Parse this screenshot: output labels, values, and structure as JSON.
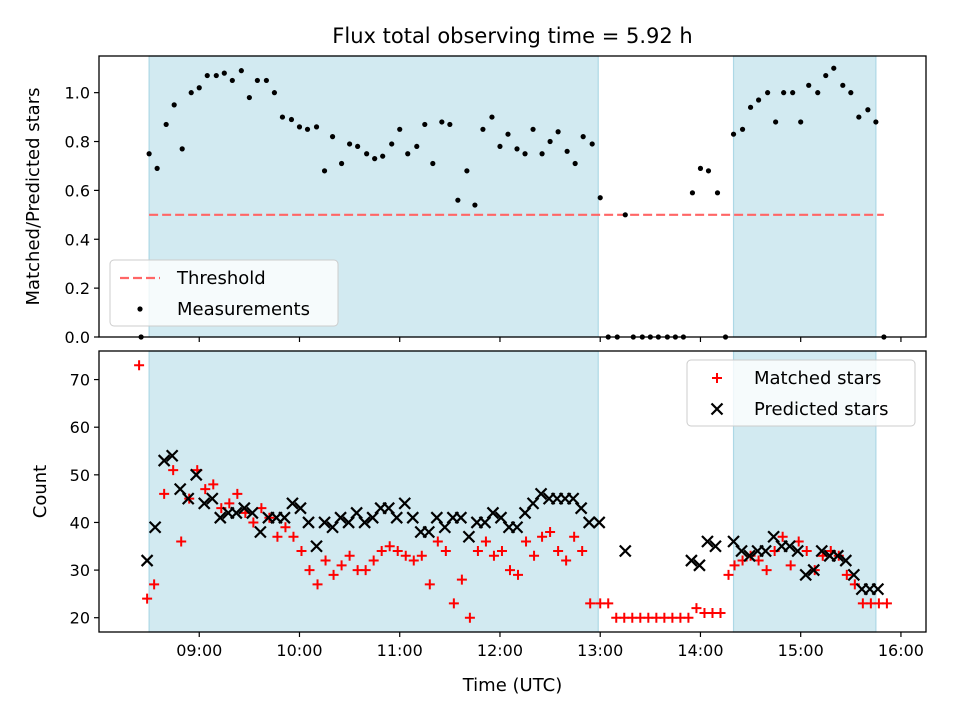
{
  "figure": {
    "title": "Flux total observing time = 5.92 h",
    "xlabel": "Time (UTC)"
  },
  "colors": {
    "shade": "#add8e6",
    "threshold": "#ff6666",
    "matched": "#ff0000",
    "predicted": "#000000",
    "measurement": "#000000"
  },
  "chart_data": [
    {
      "type": "scatter",
      "panel": "top",
      "ylabel": "Matched/Predicted stars",
      "x_unit": "hours UTC",
      "xlim": [
        8.0,
        16.25
      ],
      "ylim": [
        0,
        1.15
      ],
      "yticks": [
        0.0,
        0.2,
        0.4,
        0.6,
        0.8,
        1.0
      ],
      "ytick_labels": [
        "0.0",
        "0.2",
        "0.4",
        "0.6",
        "0.8",
        "1.0"
      ],
      "xticks": [
        9,
        10,
        11,
        12,
        13,
        14,
        15,
        16
      ],
      "xtick_labels": [
        "09:00",
        "10:00",
        "11:00",
        "12:00",
        "13:00",
        "14:00",
        "15:00",
        "16:00"
      ],
      "shaded_intervals": [
        [
          8.5,
          12.98
        ],
        [
          14.33,
          15.75
        ]
      ],
      "legend_position": "lower-left",
      "series": [
        {
          "name": "Threshold",
          "style": "dashed-line",
          "x": [
            8.5,
            15.83
          ],
          "y": [
            0.5,
            0.5
          ]
        },
        {
          "name": "Measurements",
          "style": "dot",
          "x": [
            8.42,
            8.5,
            8.58,
            8.67,
            8.75,
            8.83,
            8.92,
            9.0,
            9.08,
            9.17,
            9.25,
            9.33,
            9.42,
            9.5,
            9.58,
            9.67,
            9.75,
            9.83,
            9.92,
            10.0,
            10.08,
            10.17,
            10.25,
            10.33,
            10.42,
            10.5,
            10.58,
            10.67,
            10.75,
            10.83,
            10.92,
            11.0,
            11.08,
            11.17,
            11.25,
            11.33,
            11.42,
            11.5,
            11.58,
            11.67,
            11.75,
            11.83,
            11.92,
            12.0,
            12.08,
            12.17,
            12.25,
            12.33,
            12.42,
            12.5,
            12.58,
            12.67,
            12.75,
            12.83,
            12.92,
            13.0,
            13.08,
            13.17,
            13.25,
            13.33,
            13.42,
            13.5,
            13.58,
            13.67,
            13.75,
            13.83,
            13.92,
            14.0,
            14.08,
            14.17,
            14.25,
            14.33,
            14.42,
            14.5,
            14.58,
            14.67,
            14.75,
            14.83,
            14.92,
            15.0,
            15.08,
            15.17,
            15.25,
            15.33,
            15.42,
            15.5,
            15.58,
            15.67,
            15.75,
            15.83
          ],
          "y": [
            0.0,
            0.75,
            0.69,
            0.87,
            0.95,
            0.77,
            1.0,
            1.02,
            1.07,
            1.07,
            1.08,
            1.05,
            1.09,
            0.98,
            1.05,
            1.05,
            1.0,
            0.9,
            0.89,
            0.86,
            0.85,
            0.86,
            0.68,
            0.82,
            0.71,
            0.79,
            0.78,
            0.75,
            0.73,
            0.74,
            0.79,
            0.85,
            0.75,
            0.78,
            0.87,
            0.71,
            0.88,
            0.87,
            0.56,
            0.68,
            0.54,
            0.85,
            0.9,
            0.78,
            0.83,
            0.77,
            0.75,
            0.85,
            0.75,
            0.8,
            0.84,
            0.76,
            0.71,
            0.82,
            0.79,
            0.57,
            0.0,
            0.0,
            0.5,
            0.0,
            0.0,
            0.0,
            0.0,
            0.0,
            0.0,
            0.0,
            0.59,
            0.69,
            0.68,
            0.59,
            0.0,
            0.83,
            0.85,
            0.94,
            0.97,
            1.0,
            0.88,
            1.0,
            1.0,
            0.88,
            1.03,
            1.0,
            1.07,
            1.1,
            1.03,
            1.0,
            0.9,
            0.93,
            0.88,
            0.0
          ]
        }
      ]
    },
    {
      "type": "scatter",
      "panel": "bottom",
      "ylabel": "Count",
      "x_unit": "hours UTC",
      "xlim": [
        8.0,
        16.25
      ],
      "ylim": [
        17,
        76
      ],
      "yticks": [
        20,
        30,
        40,
        50,
        60,
        70
      ],
      "ytick_labels": [
        "20",
        "30",
        "40",
        "50",
        "60",
        "70"
      ],
      "xticks": [
        9,
        10,
        11,
        12,
        13,
        14,
        15,
        16
      ],
      "xtick_labels": [
        "09:00",
        "10:00",
        "11:00",
        "12:00",
        "13:00",
        "14:00",
        "15:00",
        "16:00"
      ],
      "shaded_intervals": [
        [
          8.5,
          12.98
        ],
        [
          14.33,
          15.75
        ]
      ],
      "legend_position": "upper-right",
      "series": [
        {
          "name": "Matched stars",
          "marker": "plus",
          "x": [
            8.4,
            8.48,
            8.55,
            8.65,
            8.74,
            8.82,
            8.9,
            8.98,
            9.06,
            9.14,
            9.22,
            9.3,
            9.38,
            9.46,
            9.54,
            9.62,
            9.7,
            9.78,
            9.86,
            9.94,
            10.02,
            10.1,
            10.18,
            10.26,
            10.34,
            10.42,
            10.5,
            10.58,
            10.66,
            10.74,
            10.82,
            10.9,
            10.98,
            11.06,
            11.14,
            11.22,
            11.3,
            11.38,
            11.46,
            11.54,
            11.62,
            11.7,
            11.78,
            11.86,
            11.94,
            12.02,
            12.1,
            12.18,
            12.26,
            12.34,
            12.42,
            12.5,
            12.58,
            12.66,
            12.74,
            12.82,
            12.9,
            13.0,
            13.08,
            13.16,
            13.24,
            13.32,
            13.4,
            13.48,
            13.56,
            13.64,
            13.72,
            13.8,
            13.88,
            13.96,
            14.04,
            14.12,
            14.2,
            14.28,
            14.34,
            14.42,
            14.5,
            14.58,
            14.66,
            14.74,
            14.82,
            14.9,
            14.98,
            15.06,
            15.14,
            15.22,
            15.3,
            15.38,
            15.46,
            15.54,
            15.62,
            15.7,
            15.78,
            15.86
          ],
          "y": [
            73,
            24,
            27,
            46,
            51,
            36,
            45,
            51,
            47,
            48,
            43,
            44,
            46,
            42,
            40,
            43,
            41,
            37,
            39,
            37,
            34,
            30,
            27,
            32,
            29,
            31,
            33,
            30,
            30,
            32,
            34,
            35,
            34,
            33,
            32,
            33,
            27,
            36,
            34,
            23,
            28,
            20,
            34,
            36,
            33,
            34,
            30,
            29,
            36,
            33,
            37,
            38,
            34,
            32,
            37,
            34,
            23,
            23,
            23,
            20,
            20,
            20,
            20,
            20,
            20,
            20,
            20,
            20,
            20,
            22,
            21,
            21,
            21,
            29,
            31,
            32,
            33,
            32,
            30,
            34,
            37,
            31,
            36,
            34,
            30,
            33,
            34,
            33,
            29,
            27,
            23,
            23,
            23,
            23
          ]
        },
        {
          "name": "Predicted stars",
          "marker": "x",
          "x": [
            8.48,
            8.56,
            8.65,
            8.73,
            8.81,
            8.89,
            8.97,
            9.05,
            9.13,
            9.21,
            9.29,
            9.37,
            9.45,
            9.53,
            9.61,
            9.69,
            9.77,
            9.85,
            9.93,
            10.01,
            10.09,
            10.17,
            10.25,
            10.33,
            10.41,
            10.49,
            10.57,
            10.65,
            10.73,
            10.81,
            10.89,
            10.97,
            11.05,
            11.13,
            11.21,
            11.29,
            11.37,
            11.45,
            11.53,
            11.61,
            11.69,
            11.77,
            11.85,
            11.93,
            12.01,
            12.09,
            12.17,
            12.25,
            12.33,
            12.41,
            12.49,
            12.57,
            12.65,
            12.73,
            12.81,
            12.89,
            12.99,
            13.25,
            13.91,
            13.99,
            14.07,
            14.15,
            14.33,
            14.41,
            14.49,
            14.57,
            14.65,
            14.73,
            14.81,
            14.89,
            14.97,
            15.05,
            15.13,
            15.21,
            15.29,
            15.37,
            15.45,
            15.53,
            15.61,
            15.69,
            15.77
          ],
          "y": [
            32,
            39,
            53,
            54,
            47,
            45,
            50,
            44,
            45,
            41,
            42,
            42,
            43,
            42,
            38,
            41,
            41,
            41,
            44,
            43,
            40,
            35,
            40,
            39,
            41,
            40,
            42,
            40,
            41,
            43,
            43,
            41,
            44,
            41,
            38,
            38,
            41,
            39,
            41,
            41,
            37,
            40,
            40,
            42,
            41,
            39,
            39,
            42,
            44,
            46,
            45,
            45,
            45,
            45,
            43,
            40,
            40,
            34,
            32,
            31,
            36,
            35,
            36,
            34,
            33,
            34,
            34,
            37,
            35,
            35,
            34,
            29,
            30,
            34,
            33,
            33,
            32,
            29,
            26,
            26,
            26
          ]
        }
      ]
    }
  ]
}
